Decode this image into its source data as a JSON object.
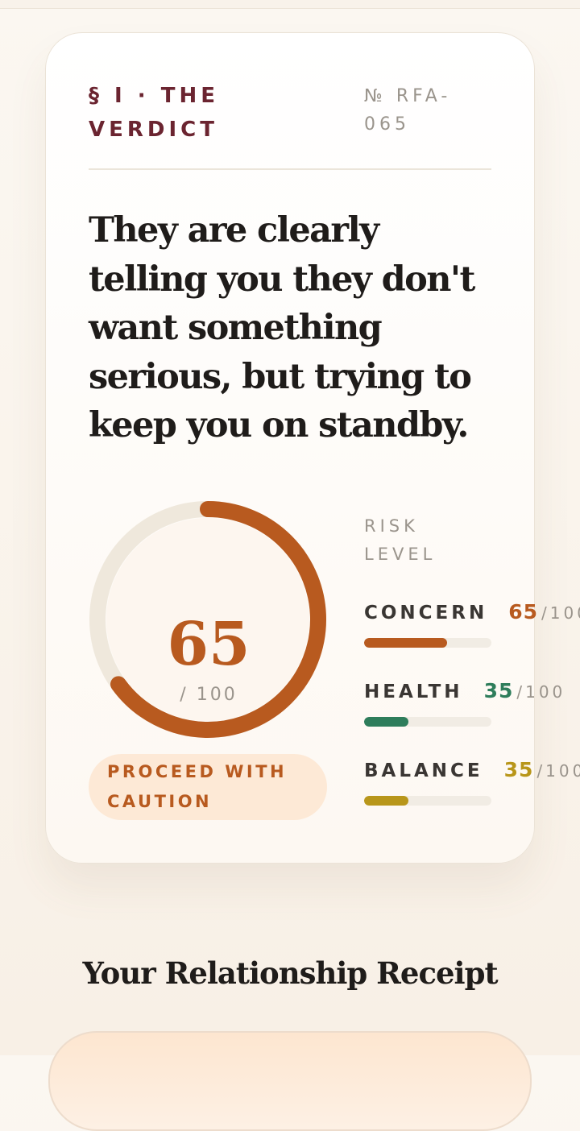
{
  "verdict_card": {
    "section_label": "§ I · THE VERDICT",
    "reference": "№ RFA-065",
    "headline": "They are clearly telling you they don't want something serious, but trying to keep you on standby.",
    "score": {
      "value": 65,
      "max": {
        "value": 100,
        "label": "/ 100"
      }
    },
    "badge": "PROCEED WITH CAUTION",
    "risk_label": "RISK LEVEL",
    "metrics": [
      {
        "name": "CONCERN",
        "value": 65,
        "max": {
          "value": 100,
          "label": "/100"
        },
        "color": "#b85a1f"
      },
      {
        "name": "HEALTH",
        "value": 35,
        "max": {
          "value": 100,
          "label": "/100"
        },
        "color": "#2e7d5b"
      },
      {
        "name": "BALANCE",
        "value": 35,
        "max": {
          "value": 100,
          "label": "/100"
        },
        "color": "#b8961a"
      }
    ]
  },
  "receipt_section": {
    "title": "Your Relationship Receipt"
  }
}
